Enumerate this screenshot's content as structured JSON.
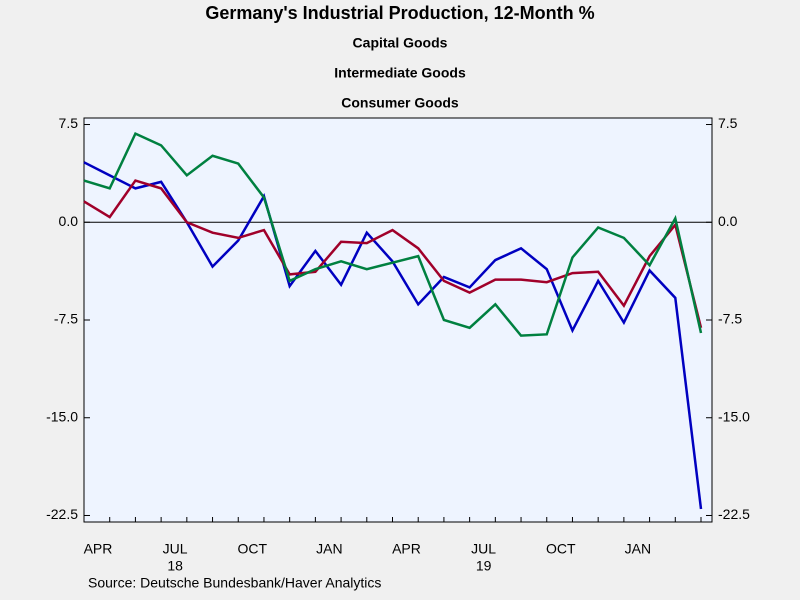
{
  "chart_data": {
    "type": "line",
    "title": "Germany's Industrial Production, 12-Month %",
    "categories": [
      "APR",
      null,
      null,
      "JUL",
      null,
      null,
      "OCT",
      null,
      null,
      "JAN",
      null,
      null,
      "APR",
      null,
      null,
      "JUL",
      null,
      null,
      "OCT",
      null,
      null,
      "JAN",
      null,
      null,
      null
    ],
    "year_labels": [
      null,
      null,
      null,
      "18",
      null,
      null,
      null,
      null,
      null,
      null,
      null,
      null,
      null,
      null,
      null,
      "19",
      null,
      null,
      null,
      null,
      null,
      null,
      null,
      null,
      null
    ],
    "series": [
      {
        "name": "Capital Goods",
        "color": "#0000c0",
        "values": [
          4.6,
          3.6,
          2.6,
          3.1,
          0.0,
          -3.4,
          -1.4,
          2.0,
          -4.9,
          -2.2,
          -4.8,
          -0.8,
          -3.0,
          -6.3,
          -4.2,
          -5.0,
          -2.9,
          -2.0,
          -3.6,
          -8.3,
          -4.5,
          -7.7,
          -3.7,
          -5.8,
          -22.0
        ]
      },
      {
        "name": "Intermediate Goods",
        "color": "#a0002a",
        "values": [
          1.6,
          0.4,
          3.2,
          2.6,
          0.0,
          -0.8,
          -1.2,
          -0.6,
          -4.0,
          -3.8,
          -1.5,
          -1.6,
          -0.6,
          -2.0,
          -4.5,
          -5.4,
          -4.4,
          -4.4,
          -4.6,
          -3.9,
          -3.8,
          -6.4,
          -2.6,
          -0.2,
          -8.1
        ]
      },
      {
        "name": "Consumer Goods",
        "color": "#008040",
        "values": [
          3.2,
          2.6,
          6.8,
          5.9,
          3.6,
          5.1,
          4.5,
          1.9,
          -4.5,
          -3.6,
          -3.0,
          -3.6,
          -3.1,
          -2.6,
          -7.5,
          -8.1,
          -6.3,
          -8.7,
          -8.6,
          -2.7,
          -0.4,
          -1.2,
          -3.3,
          0.3,
          -8.5
        ]
      }
    ],
    "ylim": [
      -23,
      8
    ],
    "yticks": [
      -22.5,
      {
        "value": -15,
        "label": "-15.0"
      },
      -7.5,
      {
        "value": 0,
        "label": "0.0"
      },
      7.5
    ],
    "source": "Source:  Deutsche Bundesbank/Haver Analytics"
  }
}
